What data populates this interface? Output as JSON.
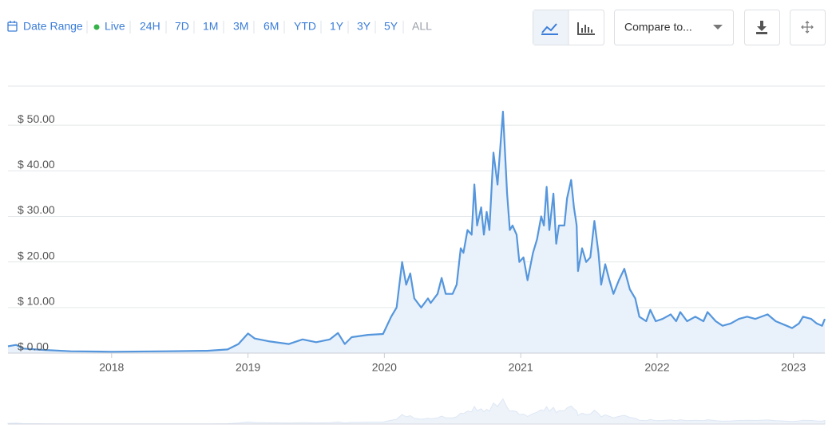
{
  "toolbar": {
    "date_range": "Date Range",
    "live": "Live",
    "ranges": [
      "24H",
      "7D",
      "1M",
      "3M",
      "6M",
      "YTD",
      "1Y",
      "3Y",
      "5Y",
      "ALL"
    ],
    "compare": "Compare to..."
  },
  "chart_data": {
    "type": "line",
    "color": "#5596dc",
    "x": [
      2017.24,
      2017.3,
      2017.35,
      2017.5,
      2017.7,
      2018.0,
      2018.4,
      2018.7,
      2018.85,
      2018.93,
      2019.0,
      2019.05,
      2019.15,
      2019.3,
      2019.4,
      2019.5,
      2019.6,
      2019.66,
      2019.71,
      2019.76,
      2019.88,
      2019.99,
      2020.05,
      2020.09,
      2020.13,
      2020.16,
      2020.19,
      2020.22,
      2020.27,
      2020.32,
      2020.34,
      2020.39,
      2020.42,
      2020.45,
      2020.5,
      2020.53,
      2020.56,
      2020.58,
      2020.61,
      2020.64,
      2020.66,
      2020.68,
      2020.71,
      2020.73,
      2020.75,
      2020.77,
      2020.8,
      2020.83,
      2020.87,
      2020.9,
      2020.92,
      2020.94,
      2020.97,
      2020.99,
      2021.02,
      2021.05,
      2021.09,
      2021.12,
      2021.15,
      2021.17,
      2021.19,
      2021.21,
      2021.24,
      2021.26,
      2021.28,
      2021.32,
      2021.34,
      2021.37,
      2021.39,
      2021.41,
      2021.42,
      2021.45,
      2021.48,
      2021.51,
      2021.54,
      2021.57,
      2021.59,
      2021.62,
      2021.65,
      2021.68,
      2021.72,
      2021.76,
      2021.8,
      2021.84,
      2021.87,
      2021.92,
      2021.95,
      2021.99,
      2022.04,
      2022.1,
      2022.14,
      2022.17,
      2022.22,
      2022.28,
      2022.34,
      2022.37,
      2022.43,
      2022.48,
      2022.54,
      2022.6,
      2022.66,
      2022.72,
      2022.81,
      2022.87,
      2022.95,
      2022.99,
      2023.04,
      2023.07,
      2023.13,
      2023.17,
      2023.21,
      2023.23
    ],
    "values": [
      1.5,
      1.8,
      1.0,
      0.7,
      0.4,
      0.3,
      0.4,
      0.5,
      0.8,
      2.0,
      4.3,
      3.2,
      2.6,
      2.0,
      3.0,
      2.4,
      3.0,
      4.4,
      2.0,
      3.5,
      4.0,
      4.2,
      8,
      10,
      20,
      15,
      17.5,
      12,
      10,
      12,
      11,
      13,
      16.5,
      13,
      13,
      15,
      23,
      22,
      27,
      26,
      37,
      28,
      32,
      26,
      31,
      27,
      44,
      37,
      53,
      35,
      27,
      28,
      26,
      20,
      21,
      16,
      22,
      25,
      30,
      28,
      36.5,
      27,
      35,
      24,
      28,
      28,
      34,
      38,
      32,
      28,
      18,
      23,
      20,
      21,
      29,
      22,
      15,
      19.5,
      16,
      13,
      16,
      18.5,
      14,
      12,
      8,
      7,
      9.5,
      7,
      7.5,
      8.5,
      7,
      9,
      7,
      8,
      7,
      9,
      7,
      6,
      6.5,
      7.5,
      8,
      7.5,
      8.5,
      7,
      6,
      5.5,
      6.5,
      8,
      7.5,
      6.5,
      6,
      7.5
    ],
    "xlim": [
      2017.24,
      2023.23
    ],
    "xticks": [
      2018,
      2019,
      2020,
      2021,
      2022,
      2023
    ],
    "ylim": [
      0,
      58.6
    ],
    "yticks": [
      {
        "value": 0,
        "label": "$ 0.00"
      },
      {
        "value": 10,
        "label": "$ 10.00"
      },
      {
        "value": 20,
        "label": "$ 20.00"
      },
      {
        "value": 30,
        "label": "$ 30.00"
      },
      {
        "value": 40,
        "label": "$ 40.00"
      },
      {
        "value": 50,
        "label": "$ 50.00"
      }
    ],
    "grid": true
  }
}
